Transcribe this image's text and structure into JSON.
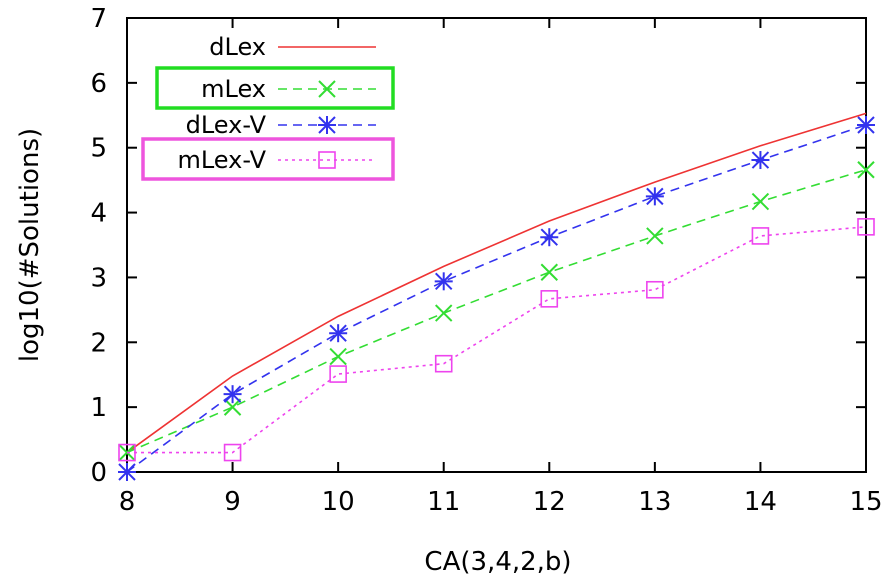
{
  "chart_data": {
    "type": "line",
    "xlabel": "CA(3,4,2,b)",
    "ylabel": "log10(#Solutions)",
    "xlim": [
      8,
      15
    ],
    "ylim": [
      0,
      7
    ],
    "x_ticks": [
      8,
      9,
      10,
      11,
      12,
      13,
      14,
      15
    ],
    "y_ticks": [
      0,
      1,
      2,
      3,
      4,
      5,
      6,
      7
    ],
    "grid": false,
    "legend_position": "top-left",
    "series": [
      {
        "name": "dLex",
        "color": "#ee3333",
        "line_style": "solid",
        "marker": "none",
        "x": [
          8,
          9,
          10,
          11,
          12,
          13,
          14,
          15
        ],
        "values": [
          0.3,
          1.48,
          2.4,
          3.17,
          3.87,
          4.47,
          5.03,
          5.53
        ]
      },
      {
        "name": "mLex",
        "color": "#33dd33",
        "line_style": "dashed",
        "marker": "x",
        "x": [
          8,
          9,
          10,
          11,
          12,
          13,
          14,
          15
        ],
        "values": [
          0.3,
          1.0,
          1.78,
          2.45,
          3.08,
          3.64,
          4.17,
          4.66
        ],
        "legend_highlight": "#22dd22"
      },
      {
        "name": "dLex-V",
        "color": "#3333ee",
        "line_style": "dashed",
        "marker": "star",
        "x": [
          8,
          9,
          10,
          11,
          12,
          13,
          14,
          15
        ],
        "values": [
          0.0,
          1.2,
          2.14,
          2.94,
          3.62,
          4.25,
          4.81,
          5.35
        ]
      },
      {
        "name": "mLex-V",
        "color": "#ee44ee",
        "line_style": "dotted",
        "marker": "square",
        "x": [
          8,
          9,
          10,
          11,
          12,
          13,
          14,
          15
        ],
        "values": [
          0.3,
          0.3,
          1.51,
          1.67,
          2.67,
          2.81,
          3.64,
          3.78
        ],
        "legend_highlight": "#ee55dd"
      }
    ]
  }
}
